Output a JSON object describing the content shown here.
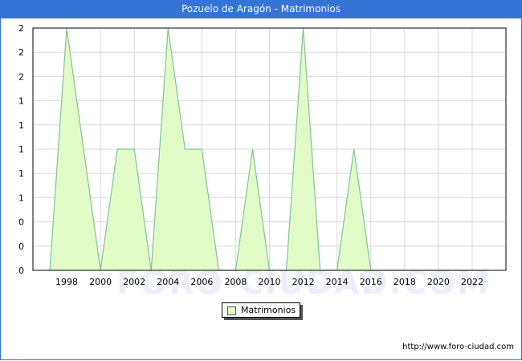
{
  "header": {
    "title": "Pozuelo de Aragón - Matrimonios"
  },
  "legend": {
    "label": "Matrimonios",
    "swatch_color": "#e2fcc8"
  },
  "footer": {
    "url": "http://www.foro-ciudad.com"
  },
  "watermark": "FORO-CIUDAD.COM",
  "colors": {
    "title_bg": "#3573d5",
    "area_fill": "#e2fcc8",
    "area_line": "#7fc496",
    "grid": "#d8d8d8"
  },
  "chart_data": {
    "type": "area",
    "title": "Pozuelo de Aragón - Matrimonios",
    "xlabel": "",
    "ylabel": "",
    "x": [
      1997,
      1998,
      1999,
      2000,
      2001,
      2002,
      2003,
      2004,
      2005,
      2006,
      2007,
      2008,
      2009,
      2010,
      2011,
      2012,
      2013,
      2014,
      2015,
      2016,
      2017,
      2018,
      2019,
      2020,
      2021,
      2022,
      2023
    ],
    "series": [
      {
        "name": "Matrimonios",
        "values": [
          0,
          2,
          1,
          0,
          1,
          1,
          0,
          2,
          1,
          1,
          0,
          0,
          1,
          0,
          0,
          2,
          0,
          0,
          1,
          0,
          0,
          0,
          0,
          0,
          0,
          0,
          0
        ]
      }
    ],
    "x_ticks": [
      "1998",
      "2000",
      "2002",
      "2004",
      "2006",
      "2008",
      "2010",
      "2012",
      "2014",
      "2016",
      "2018",
      "2020",
      "2022"
    ],
    "y_ticks": [
      "0",
      "0",
      "0",
      "1",
      "1",
      "1",
      "1",
      "1",
      "2",
      "2",
      "2"
    ],
    "ylim": [
      0,
      2
    ],
    "grid": true,
    "legend_position": "bottom-center"
  }
}
